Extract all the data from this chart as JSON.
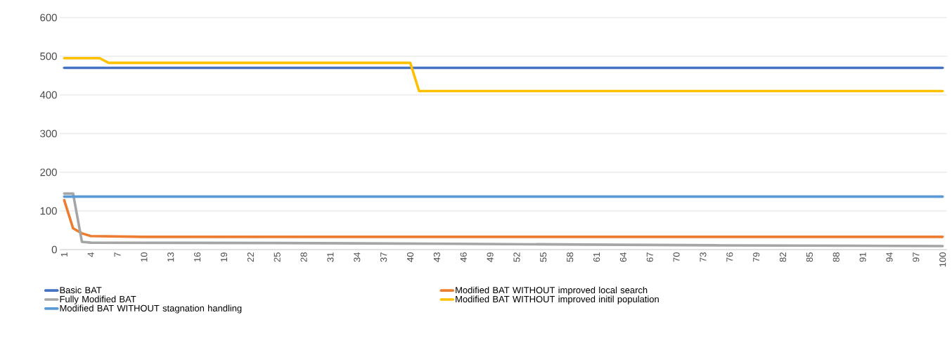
{
  "chart_data": {
    "type": "line",
    "xlim": [
      0.5,
      100.5
    ],
    "xticks": [
      1,
      4,
      7,
      10,
      13,
      16,
      19,
      22,
      25,
      28,
      31,
      34,
      37,
      40,
      43,
      46,
      49,
      52,
      55,
      58,
      61,
      64,
      67,
      70,
      73,
      76,
      79,
      82,
      85,
      88,
      91,
      94,
      97,
      100
    ],
    "ylim": [
      0,
      600
    ],
    "yticks": [
      0,
      100,
      200,
      300,
      400,
      500,
      600
    ],
    "grid": "y",
    "legend": "bottom",
    "marker": "none",
    "line_style": "solid",
    "series": [
      {
        "name": "Basic BAT",
        "color": "#4472c4",
        "x": [
          1,
          100
        ],
        "values": [
          470,
          470
        ]
      },
      {
        "name": "Modified BAT WITHOUT improved local search",
        "color": "#ed7d31",
        "x": [
          1,
          2,
          3,
          4,
          10,
          100
        ],
        "values": [
          128,
          55,
          42,
          35,
          33,
          33
        ]
      },
      {
        "name": "Fully Modified BAT",
        "color": "#a5a5a5",
        "x": [
          1,
          2,
          3,
          4,
          25,
          45,
          60,
          75,
          90,
          100
        ],
        "values": [
          145,
          145,
          20,
          18,
          17,
          15,
          13,
          11,
          10,
          9
        ]
      },
      {
        "name": "Modified BAT WITHOUT improved initil population",
        "color": "#ffc000",
        "x": [
          1,
          5,
          6,
          40,
          41,
          100
        ],
        "values": [
          495,
          495,
          483,
          483,
          410,
          410
        ]
      },
      {
        "name": "Modified BAT WITHOUT stagnation handling",
        "color": "#5b9bd5",
        "x": [
          1,
          100
        ],
        "values": [
          137,
          137
        ]
      }
    ]
  }
}
